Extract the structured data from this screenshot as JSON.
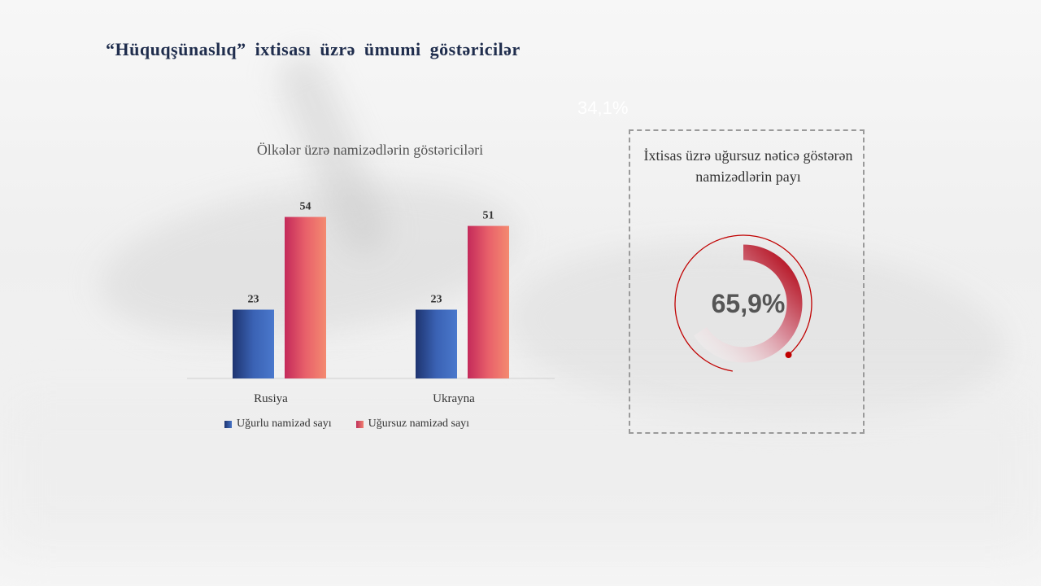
{
  "title": "“Hüquqşünaslıq” ixtisası üzrə ümumi göstəricilər",
  "stray_label": "34,1%",
  "chart_data": [
    {
      "type": "bar",
      "title": "Ölkələr üzrə namizədlərin göstəriciləri",
      "categories": [
        "Rusiya",
        "Ukrayna"
      ],
      "series": [
        {
          "name": "Uğurlu namizəd sayı",
          "values": [
            23,
            23
          ],
          "color": "#4472c4"
        },
        {
          "name": "Uğursuz namizəd sayı",
          "values": [
            54,
            51
          ],
          "color": "#e05a6e"
        }
      ],
      "ylim": [
        0,
        60
      ],
      "grid": false,
      "legend": "bottom"
    },
    {
      "type": "pie",
      "title": "İxtisas üzrə uğursuz nəticə göstərən namizədlərin payı",
      "value_label": "65,9%",
      "value": 65.9,
      "color": "#c00000"
    }
  ]
}
